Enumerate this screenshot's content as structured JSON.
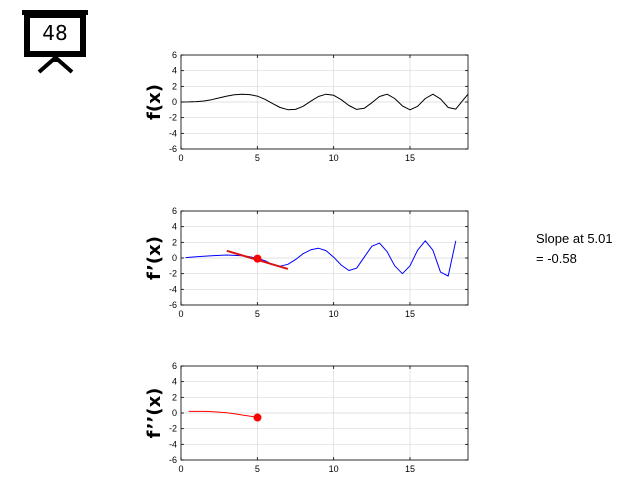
{
  "badge": {
    "number": "48",
    "icon": "projector-screen-icon"
  },
  "annotation": {
    "line1": "Slope at 5.01",
    "line2": "= -0.58"
  },
  "colors": {
    "f": "#000000",
    "fprime": "#0000ff",
    "fdoubleprime": "#ff0000",
    "tangent": "#dd1111",
    "marker": "#ff0000",
    "grid": "#d9d9d9"
  },
  "chart_data": [
    {
      "type": "line",
      "ylabel": "f(x)",
      "xlim": [
        0,
        18.8
      ],
      "ylim": [
        -6,
        6
      ],
      "xticks": [
        0,
        5,
        10,
        15
      ],
      "yticks": [
        -6,
        -4,
        -2,
        0,
        2,
        4,
        6
      ],
      "grid": true,
      "series": [
        {
          "x": [
            0,
            0.5,
            1,
            1.5,
            2,
            2.5,
            3,
            3.5,
            4,
            4.5,
            5,
            5.5,
            6,
            6.5,
            7,
            7.5,
            8,
            8.5,
            9,
            9.5,
            10,
            10.5,
            11,
            11.5,
            12,
            12.5,
            13,
            13.5,
            14,
            14.5,
            15,
            15.5,
            16,
            16.5,
            17,
            17.5,
            18,
            18.5,
            18.8
          ],
          "y": [
            0,
            0.01,
            0.05,
            0.13,
            0.3,
            0.52,
            0.75,
            0.92,
            1.0,
            0.95,
            0.75,
            0.35,
            -0.2,
            -0.7,
            -0.98,
            -0.95,
            -0.55,
            0.1,
            0.7,
            1.0,
            0.85,
            0.3,
            -0.45,
            -0.95,
            -0.8,
            -0.1,
            0.7,
            1.0,
            0.45,
            -0.5,
            -1.0,
            -0.55,
            0.45,
            1.0,
            0.4,
            -0.7,
            -0.9,
            0.3,
            1.0
          ]
        }
      ]
    },
    {
      "type": "line",
      "ylabel": "f’(x)",
      "xlim": [
        0,
        18.8
      ],
      "ylim": [
        -6,
        6
      ],
      "xticks": [
        0,
        5,
        10,
        15
      ],
      "yticks": [
        -6,
        -4,
        -2,
        0,
        2,
        4,
        6
      ],
      "grid": true,
      "series": [
        {
          "x": [
            0.3,
            1,
            2,
            3,
            4,
            4.5,
            5,
            5.5,
            6,
            6.5,
            7,
            7.5,
            8,
            8.5,
            9,
            9.5,
            10,
            10.5,
            11,
            11.5,
            12,
            12.5,
            13,
            13.5,
            14,
            14.5,
            15,
            15.5,
            16,
            16.5,
            17,
            17.5,
            18
          ],
          "y": [
            0.05,
            0.15,
            0.3,
            0.38,
            0.3,
            0.15,
            -0.05,
            -0.35,
            -0.85,
            -1.05,
            -0.8,
            -0.2,
            0.55,
            1.05,
            1.25,
            0.95,
            0.1,
            -0.9,
            -1.6,
            -1.3,
            0.1,
            1.5,
            1.9,
            0.8,
            -1.0,
            -2.0,
            -1.0,
            1.0,
            2.2,
            1.0,
            -1.8,
            -2.3,
            2.2
          ]
        }
      ],
      "tangent": {
        "x": [
          3,
          7
        ],
        "y": [
          0.92,
          -1.4
        ]
      },
      "point": {
        "x": 5.01,
        "y": -0.08
      }
    },
    {
      "type": "line",
      "ylabel": "f’’(x)",
      "xlim": [
        0,
        18.8
      ],
      "ylim": [
        -6,
        6
      ],
      "xticks": [
        0,
        5,
        10,
        15
      ],
      "yticks": [
        -6,
        -4,
        -2,
        0,
        2,
        4,
        6
      ],
      "grid": true,
      "series": [
        {
          "x": [
            0.5,
            1,
            1.5,
            2,
            2.5,
            3,
            3.5,
            4,
            4.5,
            5.01
          ],
          "y": [
            0.2,
            0.21,
            0.2,
            0.18,
            0.12,
            0.02,
            -0.1,
            -0.25,
            -0.4,
            -0.58
          ]
        }
      ],
      "point": {
        "x": 5.01,
        "y": -0.58
      }
    }
  ]
}
